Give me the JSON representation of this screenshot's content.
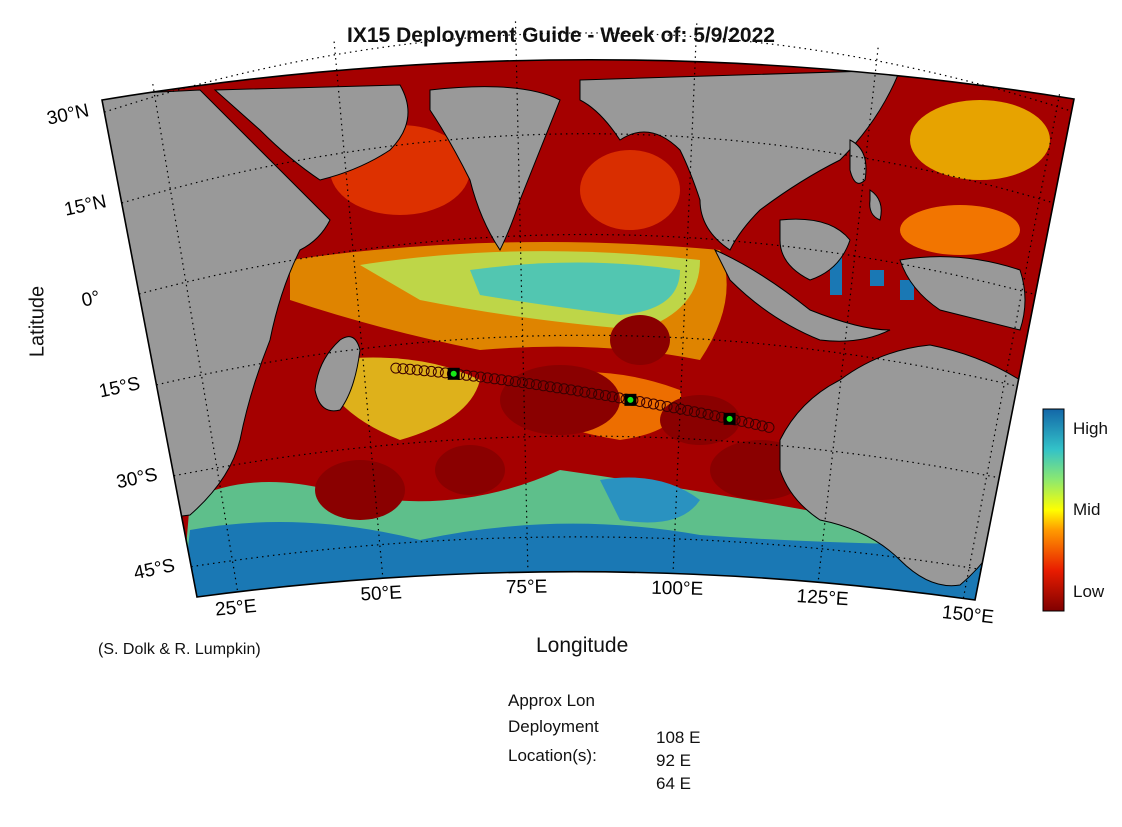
{
  "title": "IX15 Deployment Guide - Week of: 5/9/2022",
  "axes": {
    "xlabel": "Longitude",
    "ylabel": "Latitude",
    "lon_ticks": [
      {
        "deg": 25,
        "label": "25°E"
      },
      {
        "deg": 50,
        "label": "50°E"
      },
      {
        "deg": 75,
        "label": "75°E"
      },
      {
        "deg": 100,
        "label": "100°E"
      },
      {
        "deg": 125,
        "label": "125°E"
      },
      {
        "deg": 150,
        "label": "150°E"
      }
    ],
    "lat_ticks": [
      {
        "deg": 30,
        "label": "30°N"
      },
      {
        "deg": 15,
        "label": "15°N"
      },
      {
        "deg": 0,
        "label": "0°"
      },
      {
        "deg": -15,
        "label": "15°S"
      },
      {
        "deg": -30,
        "label": "30°S"
      },
      {
        "deg": -45,
        "label": "45°S"
      }
    ]
  },
  "colorbar": {
    "high": "High",
    "mid": "Mid",
    "low": "Low"
  },
  "credit": "(S. Dolk & R. Lumpkin)",
  "deployment": {
    "header": "Approx Lon",
    "label1": "Deployment",
    "label2": "Location(s):",
    "locations": [
      "108 E",
      "92 E",
      "64 E"
    ]
  },
  "colors": {
    "land": "#999999",
    "low": "#7f0000",
    "high": "#1a78b4",
    "marker": "#17e817"
  }
}
